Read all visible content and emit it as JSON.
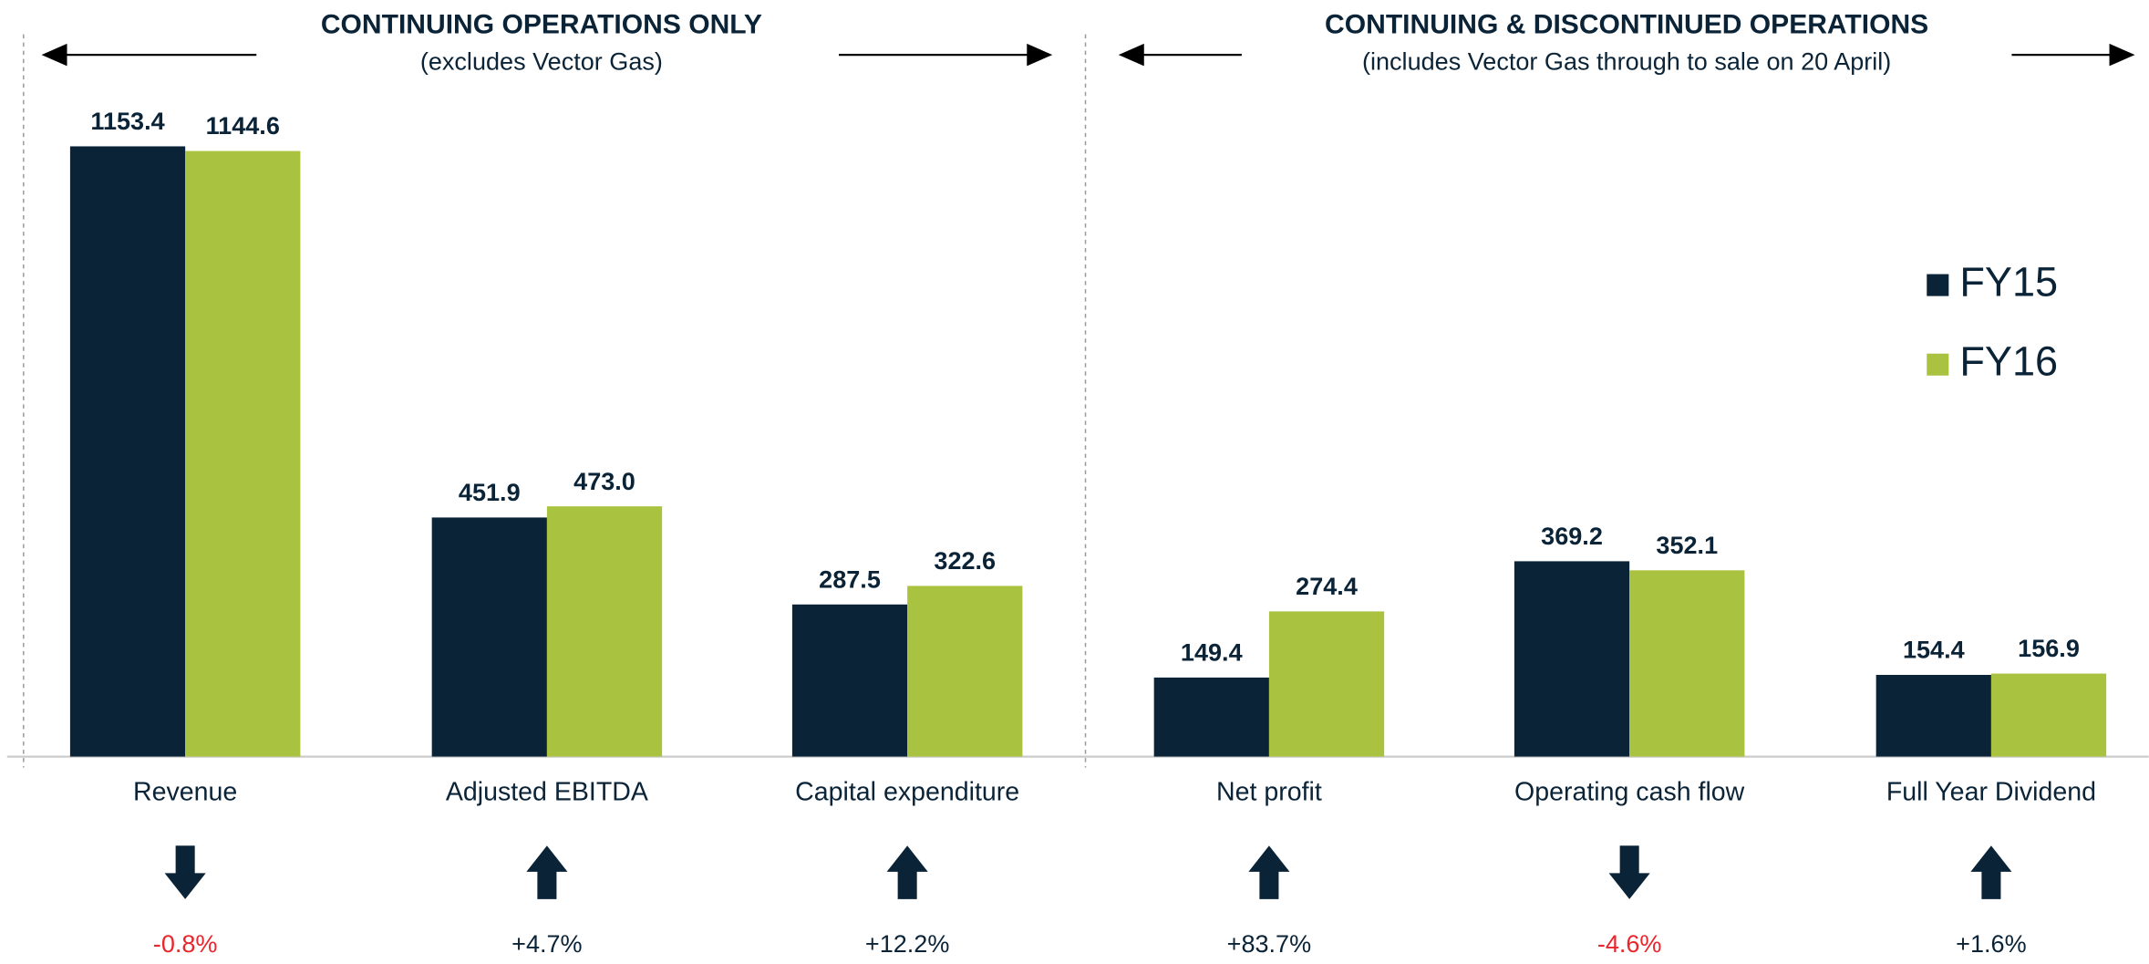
{
  "chart_data": {
    "type": "bar",
    "sections": [
      {
        "title": "CONTINUING OPERATIONS ONLY",
        "subtitle": "(excludes Vector Gas)"
      },
      {
        "title": "CONTINUING & DISCONTINUED OPERATIONS",
        "subtitle": "(includes Vector Gas through to sale on 20 April)"
      }
    ],
    "categories": [
      "Revenue",
      "Adjusted EBITDA",
      "Capital expenditure",
      "Net profit",
      "Operating cash flow",
      "Full Year Dividend"
    ],
    "series": [
      {
        "name": "FY15",
        "color": "#0a2337",
        "values": [
          1153.4,
          451.9,
          287.5,
          149.4,
          369.2,
          154.4
        ]
      },
      {
        "name": "FY16",
        "color": "#a9c23f",
        "values": [
          1144.6,
          473.0,
          322.6,
          274.4,
          352.1,
          156.9
        ],
        "value_labels": [
          "1144.6",
          "473.0",
          "322.6",
          "274.4",
          "352.1",
          "156.9"
        ]
      }
    ],
    "changes": [
      {
        "value": -0.8,
        "label": "-0.8%"
      },
      {
        "value": 4.7,
        "label": "+4.7%"
      },
      {
        "value": 12.2,
        "label": "+12.2%"
      },
      {
        "value": 83.7,
        "label": "+83.7%"
      },
      {
        "value": -4.6,
        "label": "-4.6%"
      },
      {
        "value": 1.6,
        "label": "+1.6%"
      }
    ],
    "negative_color": "#e8262b",
    "ylim": [
      0,
      1430
    ],
    "legend": "right"
  }
}
